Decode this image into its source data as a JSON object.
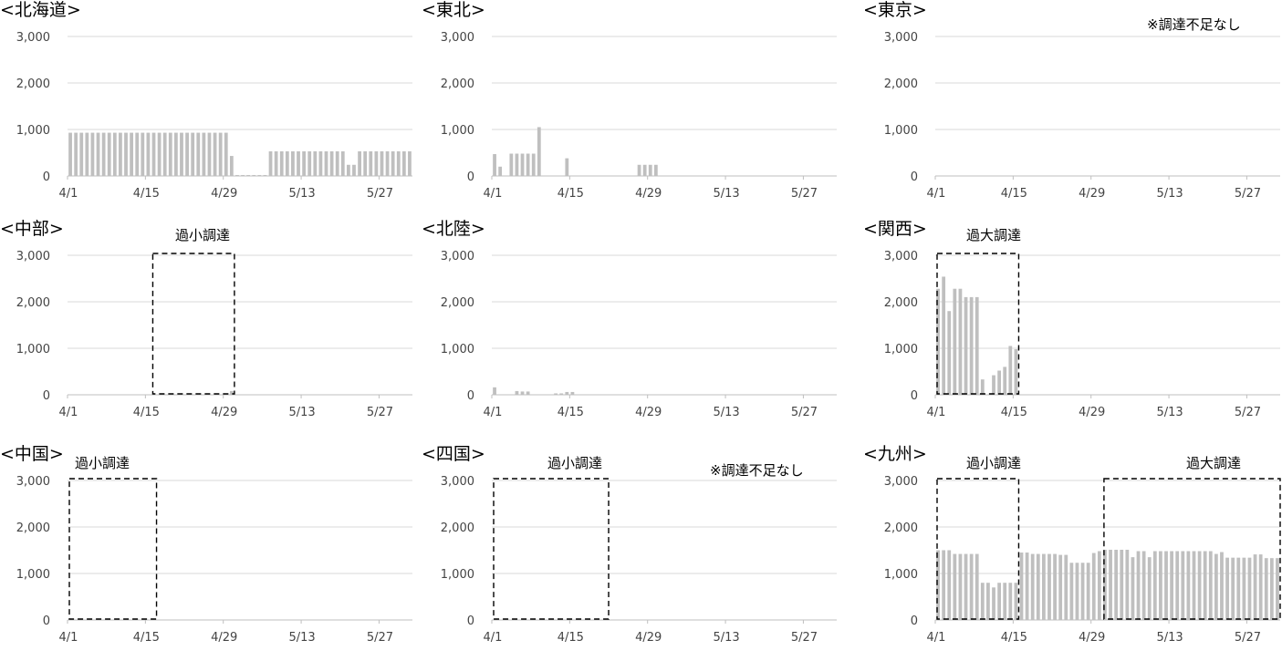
{
  "chart_data": [
    {
      "type": "bar",
      "title": "<北海道>",
      "ylim": [
        0,
        3000
      ],
      "yticks": [
        "0",
        "1,000",
        "2,000",
        "3,000"
      ],
      "xticks": [
        "4/1",
        "4/15",
        "4/29",
        "5/13",
        "5/27"
      ],
      "grid": true,
      "annotations": [],
      "boxes": [],
      "values": [
        930,
        930,
        930,
        930,
        930,
        930,
        930,
        930,
        930,
        930,
        930,
        930,
        930,
        930,
        930,
        930,
        930,
        930,
        930,
        930,
        930,
        930,
        930,
        930,
        930,
        930,
        930,
        930,
        930,
        430,
        20,
        20,
        20,
        20,
        20,
        20,
        530,
        530,
        530,
        530,
        530,
        530,
        530,
        530,
        530,
        530,
        530,
        530,
        530,
        530,
        240,
        240,
        530,
        530,
        530,
        530,
        530,
        530,
        530,
        530,
        530,
        530
      ]
    },
    {
      "type": "bar",
      "title": "<東北>",
      "ylim": [
        0,
        3000
      ],
      "yticks": [
        "0",
        "1,000",
        "2,000",
        "3,000"
      ],
      "xticks": [
        "4/1",
        "4/15",
        "4/29",
        "5/13",
        "5/27"
      ],
      "grid": true,
      "annotations": [],
      "boxes": [],
      "values": [
        470,
        200,
        0,
        480,
        480,
        480,
        480,
        480,
        1050,
        0,
        0,
        0,
        0,
        380,
        0,
        0,
        0,
        0,
        0,
        0,
        0,
        0,
        0,
        0,
        0,
        0,
        240,
        240,
        240,
        240
      ]
    },
    {
      "type": "bar",
      "title": "<東京>",
      "ylim": [
        0,
        3000
      ],
      "yticks": [
        "0",
        "1,000",
        "2,000",
        "3,000"
      ],
      "xticks": [
        "4/1",
        "4/15",
        "4/29",
        "5/13",
        "5/27"
      ],
      "grid": true,
      "annotations": [
        "※調達不足なし"
      ],
      "boxes": [],
      "values": []
    },
    {
      "type": "bar",
      "title": "<中部>",
      "ylim": [
        0,
        3000
      ],
      "yticks": [
        "0",
        "1,000",
        "2,000",
        "3,000"
      ],
      "xticks": [
        "4/1",
        "4/15",
        "4/29",
        "5/13",
        "5/27"
      ],
      "grid": true,
      "annotations": [
        "過小調達"
      ],
      "boxes": [
        {
          "from": 14.5,
          "to": 29.5
        }
      ],
      "values": [
        0,
        0,
        0,
        0,
        0,
        0,
        0,
        0,
        0,
        0,
        0,
        0,
        0,
        0,
        0,
        0,
        0,
        0,
        0,
        0,
        0,
        0,
        0,
        0,
        0,
        0,
        0,
        0,
        0,
        80
      ]
    },
    {
      "type": "bar",
      "title": "<北陸>",
      "ylim": [
        0,
        3000
      ],
      "yticks": [
        "0",
        "1,000",
        "2,000",
        "3,000"
      ],
      "xticks": [
        "4/1",
        "4/15",
        "4/29",
        "5/13",
        "5/27"
      ],
      "grid": true,
      "annotations": [],
      "boxes": [],
      "values": [
        160,
        0,
        0,
        0,
        80,
        70,
        70,
        0,
        0,
        0,
        0,
        30,
        30,
        60,
        60
      ]
    },
    {
      "type": "bar",
      "title": "<関西>",
      "ylim": [
        0,
        3000
      ],
      "yticks": [
        "0",
        "1,000",
        "2,000",
        "3,000"
      ],
      "xticks": [
        "4/1",
        "4/15",
        "4/29",
        "5/13",
        "5/27"
      ],
      "grid": true,
      "annotations": [
        "過大調達"
      ],
      "boxes": [
        {
          "from": -0.5,
          "to": 14.5
        }
      ],
      "values": [
        2280,
        2540,
        1800,
        2280,
        2280,
        2100,
        2100,
        2100,
        330,
        0,
        420,
        520,
        600,
        1050,
        980
      ]
    },
    {
      "type": "bar",
      "title": "<中国>",
      "ylim": [
        0,
        3000
      ],
      "yticks": [
        "0",
        "1,000",
        "2,000",
        "3,000"
      ],
      "xticks": [
        "4/1",
        "4/15",
        "4/29",
        "5/13",
        "5/27"
      ],
      "grid": true,
      "annotations": [
        "過小調達"
      ],
      "boxes": [
        {
          "from": -0.5,
          "to": 15.5
        }
      ],
      "values": []
    },
    {
      "type": "bar",
      "title": "<四国>",
      "ylim": [
        0,
        3000
      ],
      "yticks": [
        "0",
        "1,000",
        "2,000",
        "3,000"
      ],
      "xticks": [
        "4/1",
        "4/15",
        "4/29",
        "5/13",
        "5/27"
      ],
      "grid": true,
      "annotations": [
        "過小調達",
        "※調達不足なし"
      ],
      "boxes": [
        {
          "from": -0.5,
          "to": 20.5
        }
      ],
      "values": []
    },
    {
      "type": "bar",
      "title": "<九州>",
      "ylim": [
        0,
        3000
      ],
      "yticks": [
        "0",
        "1,000",
        "2,000",
        "3,000"
      ],
      "xticks": [
        "4/1",
        "4/15",
        "4/29",
        "5/13",
        "5/27"
      ],
      "grid": true,
      "annotations": [
        "過小調達",
        "過大調達"
      ],
      "boxes": [
        {
          "from": -0.5,
          "to": 14.5
        },
        {
          "from": 29.5,
          "to": 61.5
        }
      ],
      "values": [
        1500,
        1500,
        1500,
        1420,
        1420,
        1420,
        1420,
        1420,
        800,
        800,
        700,
        800,
        800,
        800,
        800,
        1450,
        1450,
        1420,
        1420,
        1420,
        1420,
        1420,
        1400,
        1400,
        1230,
        1230,
        1230,
        1230,
        1440,
        1480,
        1510,
        1510,
        1510,
        1510,
        1510,
        1350,
        1480,
        1480,
        1350,
        1480,
        1480,
        1480,
        1480,
        1480,
        1480,
        1480,
        1480,
        1480,
        1480,
        1480,
        1420,
        1460,
        1340,
        1340,
        1340,
        1340,
        1340,
        1410,
        1410,
        1330,
        1330,
        1330
      ]
    }
  ]
}
